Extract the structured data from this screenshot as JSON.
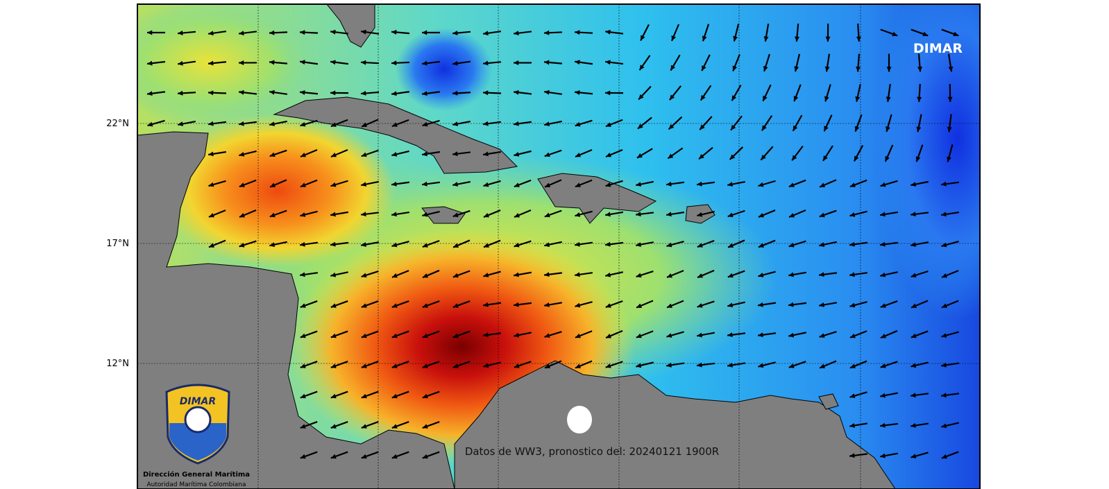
{
  "map": {
    "watermark": "DIMAR",
    "lat_labels": [
      "22°N",
      "17°N",
      "12°N"
    ],
    "caption": "Datos de WW3, pronostico del: 20240121 1900R",
    "logo": {
      "brand": "DIMAR",
      "org": "Dirección General Marítima",
      "sub": "Autoridad Marítima Colombiana"
    }
  }
}
